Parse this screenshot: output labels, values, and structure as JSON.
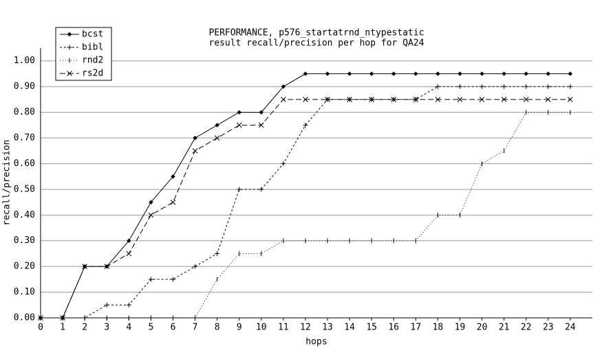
{
  "chart_data": {
    "type": "line",
    "title": "PERFORMANCE, p576_startatrnd_ntypestatic",
    "subtitle": "result recall/precision per hop for QA24",
    "x_label": "hops",
    "y_label": "recall/precision",
    "x": [
      0,
      1,
      2,
      3,
      4,
      5,
      6,
      7,
      8,
      9,
      10,
      11,
      12,
      13,
      14,
      15,
      16,
      17,
      18,
      19,
      20,
      21,
      22,
      23,
      24
    ],
    "xlim": [
      0,
      25
    ],
    "xticks": [
      0,
      1,
      2,
      3,
      4,
      5,
      6,
      7,
      8,
      9,
      10,
      11,
      12,
      13,
      14,
      15,
      16,
      17,
      18,
      19,
      20,
      21,
      22,
      23,
      24
    ],
    "ylim": [
      0,
      1.05
    ],
    "yticks": [
      {
        "value": 0,
        "label": "0.00"
      },
      {
        "value": 0.1,
        "label": "0.10"
      },
      {
        "value": 0.2,
        "label": "0.20"
      },
      {
        "value": 0.3,
        "label": "0.30"
      },
      {
        "value": 0.4,
        "label": "0.40"
      },
      {
        "value": 0.5,
        "label": "0.50"
      },
      {
        "value": 0.6,
        "label": "0.60"
      },
      {
        "value": 0.7,
        "label": "0.70"
      },
      {
        "value": 0.8,
        "label": "0.80"
      },
      {
        "value": 0.9,
        "label": "0.90"
      },
      {
        "value": 1,
        "label": "1.00"
      }
    ],
    "grid": true,
    "legend": "upper left",
    "series": [
      {
        "name": "bcst",
        "color": "#000000",
        "dash": "solid",
        "marker": "diamond",
        "values": [
          0,
          0,
          0.2,
          0.2,
          0.3,
          0.45,
          0.55,
          0.7,
          0.75,
          0.8,
          0.8,
          0.9,
          0.95,
          0.95,
          0.95,
          0.95,
          0.95,
          0.95,
          0.95,
          0.95,
          0.95,
          0.95,
          0.95,
          0.95,
          0.95
        ]
      },
      {
        "name": "bibl",
        "color": "#000000",
        "dash": "dashed",
        "marker": "plus",
        "values": [
          0,
          0,
          0,
          0.05,
          0.05,
          0.15,
          0.15,
          0.2,
          0.25,
          0.5,
          0.5,
          0.6,
          0.75,
          0.85,
          0.85,
          0.85,
          0.85,
          0.85,
          0.9,
          0.9,
          0.9,
          0.9,
          0.9,
          0.9,
          0.9
        ]
      },
      {
        "name": "rnd2",
        "color": "#000000",
        "dash": "dotted",
        "marker": "vbar",
        "values": [
          0,
          0,
          0,
          0,
          0,
          0,
          0,
          0,
          0.15,
          0.25,
          0.25,
          0.3,
          0.3,
          0.3,
          0.3,
          0.3,
          0.3,
          0.3,
          0.4,
          0.4,
          0.6,
          0.65,
          0.8,
          0.8,
          0.8
        ]
      },
      {
        "name": "rs2d",
        "color": "#000000",
        "dash": "longdash",
        "marker": "cross",
        "values": [
          0,
          0,
          0.2,
          0.2,
          0.25,
          0.4,
          0.45,
          0.65,
          0.7,
          0.75,
          0.75,
          0.85,
          0.85,
          0.85,
          0.85,
          0.85,
          0.85,
          0.85,
          0.85,
          0.85,
          0.85,
          0.85,
          0.85,
          0.85,
          0.85
        ]
      }
    ]
  }
}
